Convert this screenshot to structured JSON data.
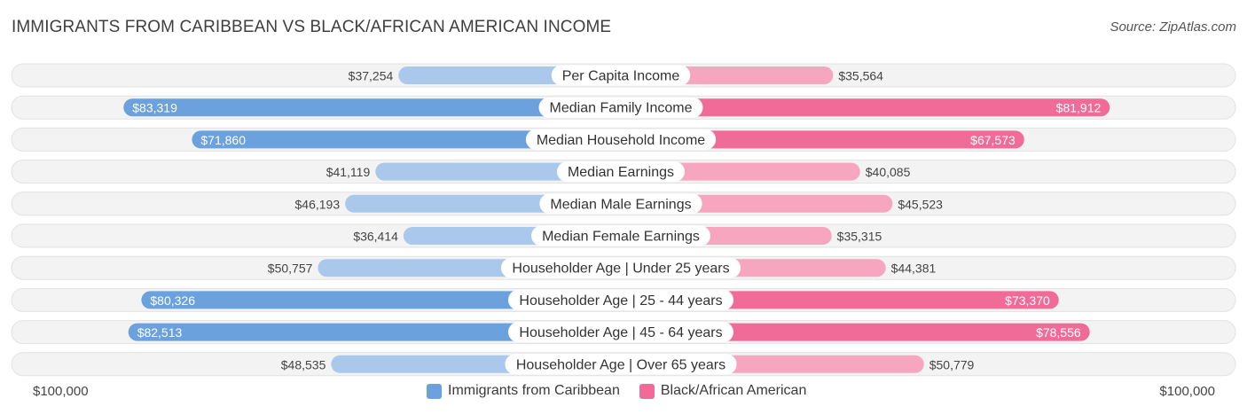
{
  "header": {
    "title": "IMMIGRANTS FROM CARIBBEAN VS BLACK/AFRICAN AMERICAN INCOME",
    "source": "Source: ZipAtlas.com"
  },
  "axis": {
    "left_label": "$100,000",
    "right_label": "$100,000"
  },
  "legend": {
    "items": [
      {
        "label": "Immigrants from Caribbean",
        "color": "#6ba1dc"
      },
      {
        "label": "Black/African American",
        "color": "#f06b98"
      }
    ]
  },
  "colors": {
    "left_strong": "#6ba1dc",
    "left_light": "#a9c8eb",
    "right_strong": "#f06b98",
    "right_light": "#f7a6c0",
    "track": "#eeeeee"
  },
  "chart_data": {
    "type": "bar",
    "orientation": "horizontal-diverging",
    "title": "IMMIGRANTS FROM CARIBBEAN VS BLACK/AFRICAN AMERICAN INCOME",
    "xlim": [
      0,
      100000
    ],
    "categories": [
      "Per Capita Income",
      "Median Family Income",
      "Median Household Income",
      "Median Earnings",
      "Median Male Earnings",
      "Median Female Earnings",
      "Householder Age | Under 25 years",
      "Householder Age | 25 - 44 years",
      "Householder Age | 45 - 64 years",
      "Householder Age | Over 65 years"
    ],
    "series": [
      {
        "name": "Immigrants from Caribbean",
        "side": "left",
        "values": [
          37254,
          83319,
          71860,
          41119,
          46193,
          36414,
          50757,
          80326,
          82513,
          48535
        ],
        "labels": [
          "$37,254",
          "$83,319",
          "$71,860",
          "$41,119",
          "$46,193",
          "$36,414",
          "$50,757",
          "$80,326",
          "$82,513",
          "$48,535"
        ]
      },
      {
        "name": "Black/African American",
        "side": "right",
        "values": [
          35564,
          81912,
          67573,
          40085,
          45523,
          35315,
          44381,
          73370,
          78556,
          50779
        ],
        "labels": [
          "$35,564",
          "$81,912",
          "$67,573",
          "$40,085",
          "$45,523",
          "$35,315",
          "$44,381",
          "$73,370",
          "$78,556",
          "$50,779"
        ]
      }
    ]
  }
}
